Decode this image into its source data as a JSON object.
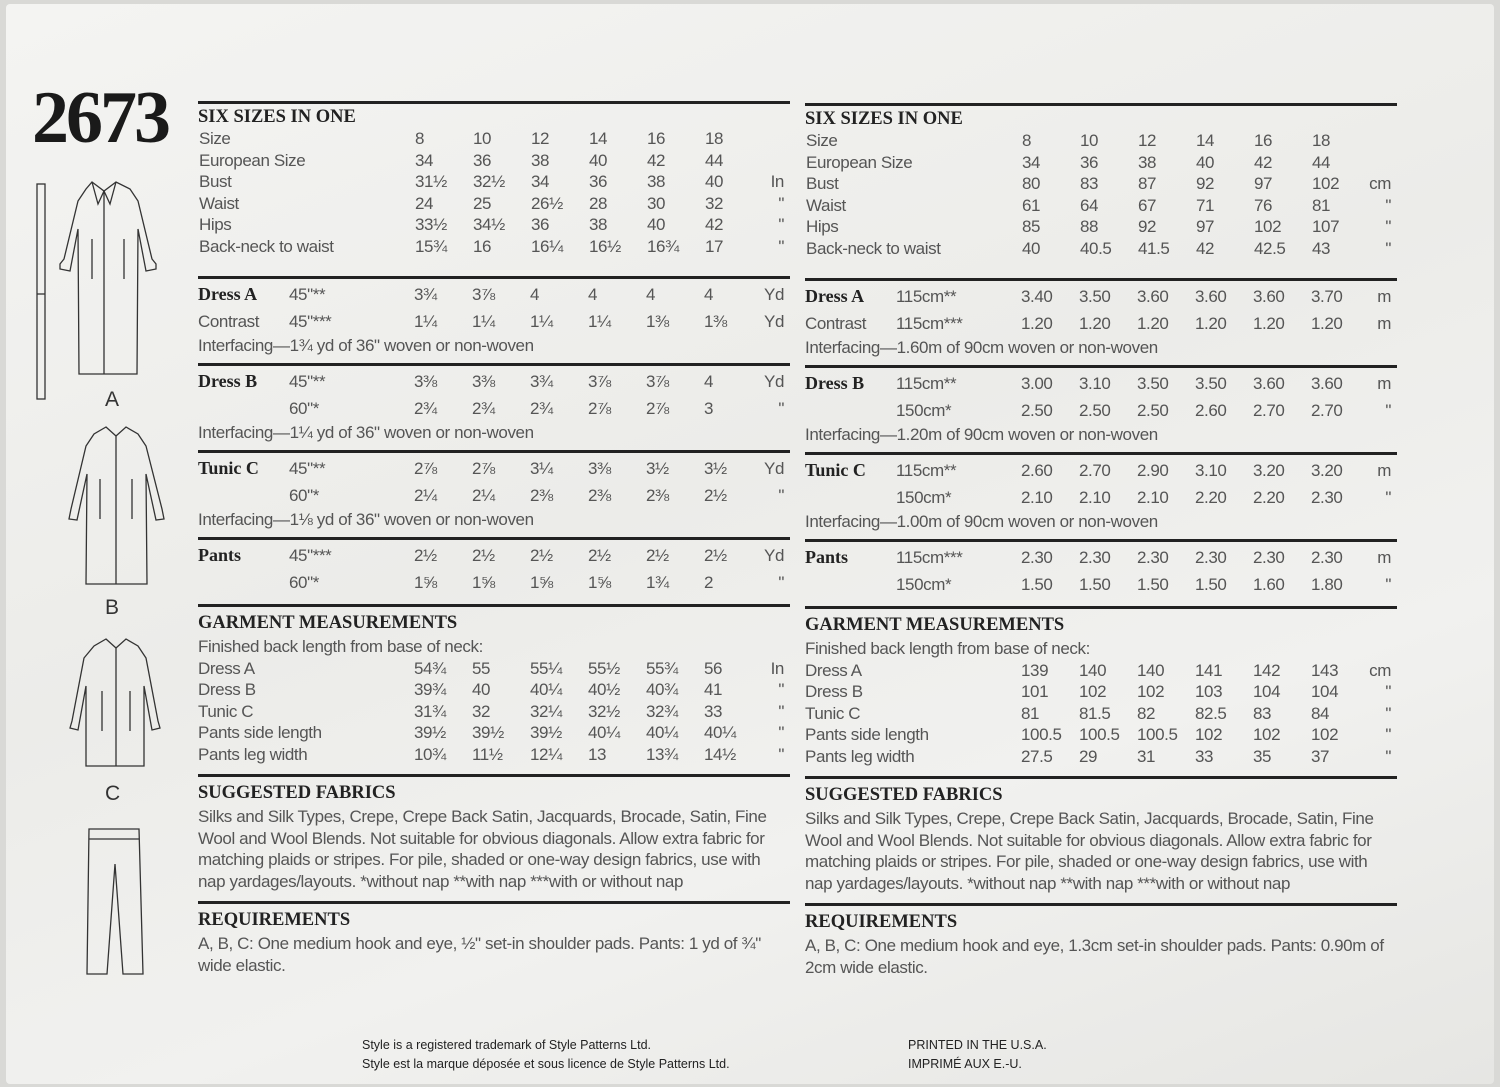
{
  "pattern_number": "2673",
  "views": [
    "A",
    "B",
    "C"
  ],
  "columns": [
    {
      "id": "imperial",
      "header": "SIX SIZES IN ONE",
      "body_rows": [
        {
          "label": "Size",
          "values": [
            "8",
            "10",
            "12",
            "14",
            "16",
            "18"
          ],
          "unit": ""
        },
        {
          "label": "European Size",
          "values": [
            "34",
            "36",
            "38",
            "40",
            "42",
            "44"
          ],
          "unit": ""
        },
        {
          "label": "Bust",
          "values": [
            "31½",
            "32½",
            "34",
            "36",
            "38",
            "40"
          ],
          "unit": "In"
        },
        {
          "label": "Waist",
          "values": [
            "24",
            "25",
            "26½",
            "28",
            "30",
            "32"
          ],
          "unit": "\""
        },
        {
          "label": "Hips",
          "values": [
            "33½",
            "34½",
            "36",
            "38",
            "40",
            "42"
          ],
          "unit": "\""
        },
        {
          "label": "Back-neck to waist",
          "values": [
            "15¾",
            "16",
            "16¼",
            "16½",
            "16¾",
            "17"
          ],
          "unit": "\""
        }
      ],
      "yardage": [
        {
          "name": "Dress A",
          "rows": [
            {
              "label": "",
              "width": "45\"**",
              "values": [
                "3¾",
                "3⅞",
                "4",
                "4",
                "4",
                "4"
              ],
              "unit": "Yd"
            },
            {
              "label": "Contrast",
              "width": "45\"***",
              "values": [
                "1¼",
                "1¼",
                "1¼",
                "1¼",
                "1⅜",
                "1⅜"
              ],
              "unit": "Yd"
            }
          ],
          "interfacing": "Interfacing—1¾ yd of 36\" woven or non-woven"
        },
        {
          "name": "Dress B",
          "rows": [
            {
              "label": "",
              "width": "45\"**",
              "values": [
                "3⅜",
                "3⅜",
                "3¾",
                "3⅞",
                "3⅞",
                "4"
              ],
              "unit": "Yd"
            },
            {
              "label": "",
              "width": "60\"*",
              "values": [
                "2¾",
                "2¾",
                "2¾",
                "2⅞",
                "2⅞",
                "3"
              ],
              "unit": "\""
            }
          ],
          "interfacing": "Interfacing—1¼ yd of 36\" woven or non-woven"
        },
        {
          "name": "Tunic C",
          "rows": [
            {
              "label": "",
              "width": "45\"**",
              "values": [
                "2⅞",
                "2⅞",
                "3¼",
                "3⅜",
                "3½",
                "3½"
              ],
              "unit": "Yd"
            },
            {
              "label": "",
              "width": "60\"*",
              "values": [
                "2¼",
                "2¼",
                "2⅜",
                "2⅜",
                "2⅜",
                "2½"
              ],
              "unit": "\""
            }
          ],
          "interfacing": "Interfacing—1⅛ yd of 36\" woven or non-woven"
        },
        {
          "name": "Pants",
          "rows": [
            {
              "label": "",
              "width": "45\"***",
              "values": [
                "2½",
                "2½",
                "2½",
                "2½",
                "2½",
                "2½"
              ],
              "unit": "Yd"
            },
            {
              "label": "",
              "width": "60\"*",
              "values": [
                "1⅝",
                "1⅝",
                "1⅝",
                "1⅝",
                "1¾",
                "2"
              ],
              "unit": "\""
            }
          ],
          "interfacing": ""
        }
      ],
      "garment": {
        "title": "GARMENT MEASUREMENTS",
        "subtitle": "Finished back length from base of neck:",
        "rows": [
          {
            "label": "Dress A",
            "values": [
              "54¾",
              "55",
              "55¼",
              "55½",
              "55¾",
              "56"
            ],
            "unit": "In"
          },
          {
            "label": "Dress B",
            "values": [
              "39¾",
              "40",
              "40¼",
              "40½",
              "40¾",
              "41"
            ],
            "unit": "\""
          },
          {
            "label": "Tunic C",
            "values": [
              "31¾",
              "32",
              "32¼",
              "32½",
              "32¾",
              "33"
            ],
            "unit": "\""
          },
          {
            "label": "Pants side length",
            "values": [
              "39½",
              "39½",
              "39½",
              "40¼",
              "40¼",
              "40¼"
            ],
            "unit": "\""
          },
          {
            "label": "Pants leg width",
            "values": [
              "10¾",
              "11½",
              "12¼",
              "13",
              "13¾",
              "14½"
            ],
            "unit": "\""
          }
        ]
      },
      "fabrics": {
        "title": "SUGGESTED FABRICS",
        "text": "Silks and Silk Types, Crepe, Crepe Back Satin, Jacquards, Brocade, Satin, Fine Wool and Wool Blends. Not suitable for obvious diagonals. Allow extra fabric for matching plaids or stripes. For pile, shaded or one-way design fabrics, use with nap yardages/layouts. *without nap **with nap ***with or without nap"
      },
      "requirements": {
        "title": "REQUIREMENTS",
        "text": "A, B, C: One medium hook and eye, ½\" set-in shoulder pads. Pants: 1 yd of ¾\" wide elastic."
      }
    },
    {
      "id": "metric",
      "header": "SIX SIZES IN ONE",
      "body_rows": [
        {
          "label": "Size",
          "values": [
            "8",
            "10",
            "12",
            "14",
            "16",
            "18"
          ],
          "unit": ""
        },
        {
          "label": "European Size",
          "values": [
            "34",
            "36",
            "38",
            "40",
            "42",
            "44"
          ],
          "unit": ""
        },
        {
          "label": "Bust",
          "values": [
            "80",
            "83",
            "87",
            "92",
            "97",
            "102"
          ],
          "unit": "cm"
        },
        {
          "label": "Waist",
          "values": [
            "61",
            "64",
            "67",
            "71",
            "76",
            "81"
          ],
          "unit": "\""
        },
        {
          "label": "Hips",
          "values": [
            "85",
            "88",
            "92",
            "97",
            "102",
            "107"
          ],
          "unit": "\""
        },
        {
          "label": "Back-neck to waist",
          "values": [
            "40",
            "40.5",
            "41.5",
            "42",
            "42.5",
            "43"
          ],
          "unit": "\""
        }
      ],
      "yardage": [
        {
          "name": "Dress A",
          "rows": [
            {
              "label": "",
              "width": "115cm**",
              "values": [
                "3.40",
                "3.50",
                "3.60",
                "3.60",
                "3.60",
                "3.70"
              ],
              "unit": "m"
            },
            {
              "label": "Contrast",
              "width": "115cm***",
              "values": [
                "1.20",
                "1.20",
                "1.20",
                "1.20",
                "1.20",
                "1.20"
              ],
              "unit": "m"
            }
          ],
          "interfacing": "Interfacing—1.60m of 90cm woven or non-woven"
        },
        {
          "name": "Dress B",
          "rows": [
            {
              "label": "",
              "width": "115cm**",
              "values": [
                "3.00",
                "3.10",
                "3.50",
                "3.50",
                "3.60",
                "3.60"
              ],
              "unit": "m"
            },
            {
              "label": "",
              "width": "150cm*",
              "values": [
                "2.50",
                "2.50",
                "2.50",
                "2.60",
                "2.70",
                "2.70"
              ],
              "unit": "\""
            }
          ],
          "interfacing": "Interfacing—1.20m of 90cm woven or non-woven"
        },
        {
          "name": "Tunic C",
          "rows": [
            {
              "label": "",
              "width": "115cm**",
              "values": [
                "2.60",
                "2.70",
                "2.90",
                "3.10",
                "3.20",
                "3.20"
              ],
              "unit": "m"
            },
            {
              "label": "",
              "width": "150cm*",
              "values": [
                "2.10",
                "2.10",
                "2.10",
                "2.20",
                "2.20",
                "2.30"
              ],
              "unit": "\""
            }
          ],
          "interfacing": "Interfacing—1.00m of 90cm woven or non-woven"
        },
        {
          "name": "Pants",
          "rows": [
            {
              "label": "",
              "width": "115cm***",
              "values": [
                "2.30",
                "2.30",
                "2.30",
                "2.30",
                "2.30",
                "2.30"
              ],
              "unit": "m"
            },
            {
              "label": "",
              "width": "150cm*",
              "values": [
                "1.50",
                "1.50",
                "1.50",
                "1.50",
                "1.60",
                "1.80"
              ],
              "unit": "\""
            }
          ],
          "interfacing": ""
        }
      ],
      "garment": {
        "title": "GARMENT MEASUREMENTS",
        "subtitle": "Finished back length from base of neck:",
        "rows": [
          {
            "label": "Dress A",
            "values": [
              "139",
              "140",
              "140",
              "141",
              "142",
              "143"
            ],
            "unit": "cm"
          },
          {
            "label": "Dress B",
            "values": [
              "101",
              "102",
              "102",
              "103",
              "104",
              "104"
            ],
            "unit": "\""
          },
          {
            "label": "Tunic C",
            "values": [
              "81",
              "81.5",
              "82",
              "82.5",
              "83",
              "84"
            ],
            "unit": "\""
          },
          {
            "label": "Pants side length",
            "values": [
              "100.5",
              "100.5",
              "100.5",
              "102",
              "102",
              "102"
            ],
            "unit": "\""
          },
          {
            "label": "Pants leg width",
            "values": [
              "27.5",
              "29",
              "31",
              "33",
              "35",
              "37"
            ],
            "unit": "\""
          }
        ]
      },
      "fabrics": {
        "title": "SUGGESTED FABRICS",
        "text": "Silks and Silk Types, Crepe, Crepe Back Satin, Jacquards, Brocade, Satin, Fine Wool and Wool Blends. Not suitable for obvious diagonals. Allow extra fabric for matching plaids or stripes. For pile, shaded or one-way design fabrics, use with nap yardages/layouts. *without nap **with nap ***with or without nap"
      },
      "requirements": {
        "title": "REQUIREMENTS",
        "text": "A, B, C: One medium hook and eye, 1.3cm set-in shoulder pads. Pants: 0.90m of 2cm wide elastic."
      }
    }
  ],
  "footer": {
    "trademark_en": "Style is a registered trademark of Style Patterns Ltd.",
    "trademark_fr": "Style est la marque déposée et sous licence de Style Patterns Ltd.",
    "printed_en": "PRINTED IN THE U.S.A.",
    "printed_fr": "IMPRIMÉ AUX E.-U."
  }
}
